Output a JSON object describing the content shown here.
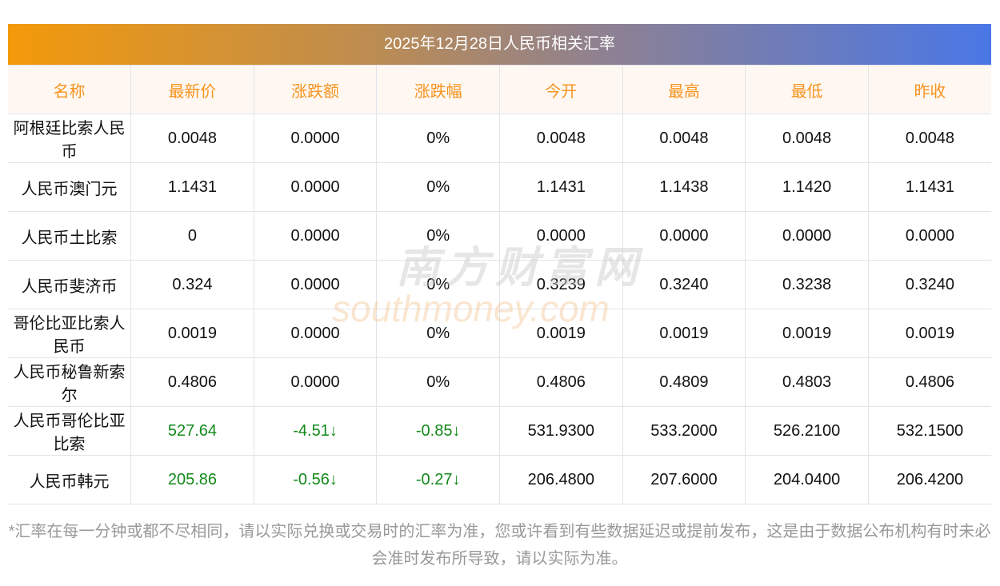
{
  "title": "2025年12月28日人民币相关汇率",
  "headers": [
    "名称",
    "最新价",
    "涨跌额",
    "涨跌幅",
    "今开",
    "最高",
    "最低",
    "昨收"
  ],
  "rows": [
    [
      "阿根廷比索人民币",
      "0.0048",
      "0.0000",
      "0%",
      "0.0048",
      "0.0048",
      "0.0048",
      "0.0048"
    ],
    [
      "人民币澳门元",
      "1.1431",
      "0.0000",
      "0%",
      "1.1431",
      "1.1438",
      "1.1420",
      "1.1431"
    ],
    [
      "人民币土比索",
      "0",
      "0.0000",
      "0%",
      "0.0000",
      "0.0000",
      "0.0000",
      "0.0000"
    ],
    [
      "人民币斐济币",
      "0.324",
      "0.0000",
      "0%",
      "0.3239",
      "0.3240",
      "0.3238",
      "0.3240"
    ],
    [
      "哥伦比亚比索人民币",
      "0.0019",
      "0.0000",
      "0%",
      "0.0019",
      "0.0019",
      "0.0019",
      "0.0019"
    ],
    [
      "人民币秘鲁新索尔",
      "0.4806",
      "0.0000",
      "0%",
      "0.4806",
      "0.4809",
      "0.4803",
      "0.4806"
    ],
    [
      "人民币哥伦比亚比索",
      "527.64",
      "-4.51↓",
      "-0.85↓",
      "531.9300",
      "533.2000",
      "526.2100",
      "532.1500"
    ],
    [
      "人民币韩元",
      "205.86",
      "-0.56↓",
      "-0.27↓",
      "206.4800",
      "207.6000",
      "204.0400",
      "206.4200"
    ]
  ],
  "down_rows": [
    6,
    7
  ],
  "note": "*汇率在每一分钟或都不尽相同，请以实际兑换或交易时的汇率为准，您或许看到有些数据延迟或提前发布，这是由于数据公布机构有时未必会准时发布所导致，请以实际为准。",
  "watermark": {
    "cn": "南方财富网",
    "en": "southmoney.com"
  },
  "colors": {
    "header_text": "#f7931e",
    "down": "#12891a"
  }
}
